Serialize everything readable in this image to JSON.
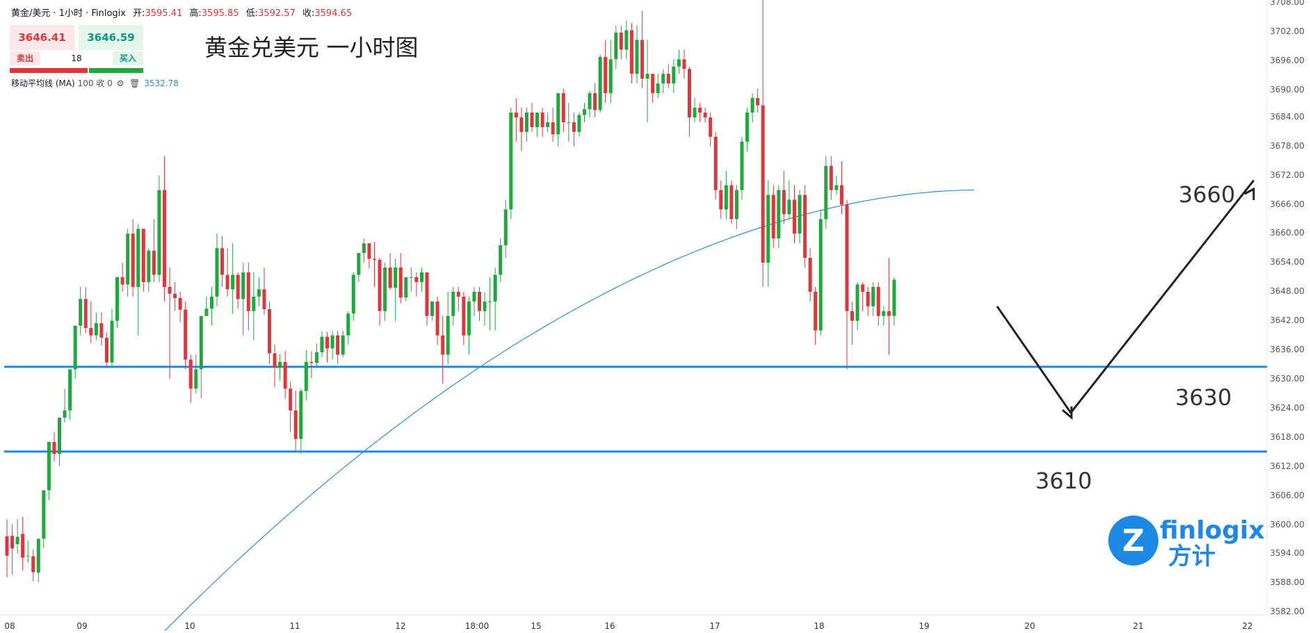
{
  "header": {
    "symbol": "黄金/美元 · 1小时 · Finlogix",
    "open_label": "开:",
    "open": "3595.41",
    "high_label": "高:",
    "high": "3595.85",
    "low_label": "低:",
    "low": "3592.57",
    "close_label": "收:",
    "close": "3594.65"
  },
  "trade_panel": {
    "sell_price": "3646.41",
    "buy_price": "3646.59",
    "sell_label": "卖出",
    "buy_label": "买入",
    "quantity": "18"
  },
  "indicator": {
    "label": "移动平均线 (MA)",
    "params": "100 收 0",
    "value": "3532.78"
  },
  "overlay_title": "黄金兑美元 一小时图",
  "logo": {
    "name": "finlogix",
    "name_cn": "方计",
    "mark": "Z"
  },
  "colors": {
    "up": "#1fa83b",
    "down": "#e0353b",
    "ma": "#2f8ce0",
    "level_line": "#1e88e5",
    "axis_text": "#555555",
    "arrow": "#222222"
  },
  "chart_data": {
    "type": "candlestick",
    "title": "黄金兑美元 一小时图",
    "ylim": [
      3578,
      3708
    ],
    "y_ticks": [
      3708,
      3702,
      3696,
      3690,
      3684,
      3678,
      3672,
      3666,
      3660,
      3654,
      3648,
      3642,
      3636,
      3630,
      3624,
      3618,
      3612,
      3606,
      3600,
      3594,
      3588,
      3582
    ],
    "x_ticks": [
      "08",
      "09",
      "10",
      "11",
      "12",
      "18:00",
      "15",
      "16",
      "17",
      "18",
      "19",
      "20",
      "21",
      "22"
    ],
    "horizontal_levels": [
      3629.5,
      3612.0
    ],
    "level_labels": [
      "3660",
      "3630",
      "3610"
    ],
    "moving_average": {
      "name": "MA 100",
      "start": 3575.0,
      "end": 3666.0
    },
    "projection_path": [
      3642,
      3620,
      3668
    ],
    "candles": [
      {
        "o": 3594.5,
        "h": 3598.0,
        "c": 3590.5,
        "l": 3586.0
      },
      {
        "o": 3594.6,
        "h": 3597.0,
        "c": 3592.0,
        "l": 3586.6
      },
      {
        "o": 3592.9,
        "h": 3598.1,
        "c": 3594.4,
        "l": 3590.9
      },
      {
        "o": 3595.0,
        "h": 3598.5,
        "c": 3590.1,
        "l": 3587.4
      },
      {
        "o": 3590.5,
        "h": 3593.6,
        "c": 3590.5,
        "l": 3589.0
      },
      {
        "o": 3590.4,
        "h": 3591.8,
        "c": 3587.1,
        "l": 3585.2
      },
      {
        "o": 3587.0,
        "h": 3594.0,
        "c": 3594.0,
        "l": 3585.0
      },
      {
        "o": 3594.0,
        "h": 3604.0,
        "c": 3604.0,
        "l": 3592.0
      },
      {
        "o": 3604.0,
        "h": 3614.0,
        "c": 3614.0,
        "l": 3602.0
      },
      {
        "o": 3614.0,
        "h": 3616.0,
        "c": 3611.5,
        "l": 3610.0
      },
      {
        "o": 3611.5,
        "h": 3619.0,
        "c": 3619.0,
        "l": 3609.0
      },
      {
        "o": 3619.0,
        "h": 3625.0,
        "c": 3620.5,
        "l": 3618.0
      },
      {
        "o": 3620.5,
        "h": 3629.0,
        "c": 3629.0,
        "l": 3618.5
      },
      {
        "o": 3629.0,
        "h": 3638.0,
        "c": 3638.0,
        "l": 3627.0
      },
      {
        "o": 3638.0,
        "h": 3646.0,
        "c": 3643.5,
        "l": 3636.0
      },
      {
        "o": 3643.5,
        "h": 3646.0,
        "c": 3637.5,
        "l": 3636.5
      },
      {
        "o": 3637.5,
        "h": 3643.0,
        "c": 3636.0,
        "l": 3634.4
      },
      {
        "o": 3636.0,
        "h": 3640.7,
        "c": 3638.5,
        "l": 3635.0
      },
      {
        "o": 3638.5,
        "h": 3640.8,
        "c": 3635.5,
        "l": 3633.9
      },
      {
        "o": 3635.5,
        "h": 3636.6,
        "c": 3630.4,
        "l": 3629.2
      },
      {
        "o": 3630.4,
        "h": 3641.5,
        "c": 3639.0,
        "l": 3629.2
      },
      {
        "o": 3639.0,
        "h": 3648.0,
        "c": 3648.0,
        "l": 3637.5
      },
      {
        "o": 3648.0,
        "h": 3651.0,
        "c": 3646.5,
        "l": 3645.0
      },
      {
        "o": 3646.5,
        "h": 3658.0,
        "c": 3657.0,
        "l": 3644.0
      },
      {
        "o": 3657.0,
        "h": 3660.0,
        "c": 3646.0,
        "l": 3644.0
      },
      {
        "o": 3646.0,
        "h": 3659.0,
        "c": 3658.0,
        "l": 3636.0
      },
      {
        "o": 3658.0,
        "h": 3658.0,
        "c": 3647.0,
        "l": 3645.0
      },
      {
        "o": 3647.0,
        "h": 3654.0,
        "c": 3653.5,
        "l": 3645.0
      },
      {
        "o": 3653.5,
        "h": 3660.0,
        "c": 3648.5,
        "l": 3647.0
      },
      {
        "o": 3648.5,
        "h": 3669.0,
        "c": 3666.0,
        "l": 3647.0
      },
      {
        "o": 3666.0,
        "h": 3673.0,
        "c": 3646.0,
        "l": 3643.0
      },
      {
        "o": 3646.0,
        "h": 3650.0,
        "c": 3644.6,
        "l": 3627.0
      },
      {
        "o": 3644.6,
        "h": 3647.0,
        "c": 3643.7,
        "l": 3641.0
      },
      {
        "o": 3643.7,
        "h": 3645.0,
        "c": 3641.3,
        "l": 3638.7
      },
      {
        "o": 3641.3,
        "h": 3643.0,
        "c": 3631.0,
        "l": 3629.0
      },
      {
        "o": 3631.0,
        "h": 3632.0,
        "c": 3625.0,
        "l": 3622.0
      },
      {
        "o": 3625.0,
        "h": 3632.0,
        "c": 3629.0,
        "l": 3624.0
      },
      {
        "o": 3629.0,
        "h": 3640.0,
        "c": 3640.0,
        "l": 3623.0
      },
      {
        "o": 3640.0,
        "h": 3644.0,
        "c": 3641.5,
        "l": 3640.0
      },
      {
        "o": 3641.5,
        "h": 3646.0,
        "c": 3644.0,
        "l": 3638.0
      },
      {
        "o": 3644.0,
        "h": 3657.0,
        "c": 3654.0,
        "l": 3642.0
      },
      {
        "o": 3654.0,
        "h": 3656.5,
        "c": 3648.5,
        "l": 3646.0
      },
      {
        "o": 3648.5,
        "h": 3654.0,
        "c": 3645.5,
        "l": 3644.0
      },
      {
        "o": 3645.5,
        "h": 3655.0,
        "c": 3648.5,
        "l": 3640.5
      },
      {
        "o": 3648.5,
        "h": 3649.0,
        "c": 3643.5,
        "l": 3641.5
      },
      {
        "o": 3643.5,
        "h": 3651.0,
        "c": 3649.0,
        "l": 3636.0
      },
      {
        "o": 3649.0,
        "h": 3651.0,
        "c": 3641.0,
        "l": 3637.0
      },
      {
        "o": 3641.0,
        "h": 3649.0,
        "c": 3644.0,
        "l": 3635.0
      },
      {
        "o": 3644.0,
        "h": 3648.0,
        "c": 3645.5,
        "l": 3642.0
      },
      {
        "o": 3645.5,
        "h": 3650.0,
        "c": 3641.4,
        "l": 3640.2
      },
      {
        "o": 3641.4,
        "h": 3643.0,
        "c": 3632.3,
        "l": 3630.1
      },
      {
        "o": 3632.3,
        "h": 3634.1,
        "c": 3629.3,
        "l": 3625.3
      },
      {
        "o": 3629.3,
        "h": 3632.1,
        "c": 3630.5,
        "l": 3626.6
      },
      {
        "o": 3630.5,
        "h": 3632.8,
        "c": 3625.0,
        "l": 3622.9
      },
      {
        "o": 3625.0,
        "h": 3626.5,
        "c": 3620.5,
        "l": 3616.0
      },
      {
        "o": 3620.5,
        "h": 3624.6,
        "c": 3614.6,
        "l": 3612.1
      },
      {
        "o": 3614.6,
        "h": 3625.0,
        "c": 3624.5,
        "l": 3611.5
      },
      {
        "o": 3624.5,
        "h": 3633.0,
        "c": 3630.5,
        "l": 3622.5
      },
      {
        "o": 3630.5,
        "h": 3632.7,
        "c": 3630.3,
        "l": 3627.1
      },
      {
        "o": 3630.3,
        "h": 3634.3,
        "c": 3632.5,
        "l": 3629.6
      },
      {
        "o": 3632.5,
        "h": 3636.8,
        "c": 3635.7,
        "l": 3631.5
      },
      {
        "o": 3635.7,
        "h": 3636.7,
        "c": 3633.3,
        "l": 3630.4
      },
      {
        "o": 3633.3,
        "h": 3637.0,
        "c": 3636.0,
        "l": 3631.0
      },
      {
        "o": 3636.0,
        "h": 3637.0,
        "c": 3632.0,
        "l": 3630.0
      },
      {
        "o": 3632.0,
        "h": 3637.0,
        "c": 3636.0,
        "l": 3631.5
      },
      {
        "o": 3636.0,
        "h": 3641.0,
        "c": 3640.5,
        "l": 3634.0
      },
      {
        "o": 3640.5,
        "h": 3649.0,
        "c": 3648.5,
        "l": 3639.0
      },
      {
        "o": 3648.5,
        "h": 3653.0,
        "c": 3653.0,
        "l": 3647.0
      },
      {
        "o": 3653.0,
        "h": 3656.0,
        "c": 3655.0,
        "l": 3651.0
      },
      {
        "o": 3655.0,
        "h": 3655.0,
        "c": 3651.8,
        "l": 3649.8
      },
      {
        "o": 3651.8,
        "h": 3655.3,
        "c": 3651.6,
        "l": 3646.0
      },
      {
        "o": 3651.6,
        "h": 3652.0,
        "c": 3641.0,
        "l": 3638.0
      },
      {
        "o": 3641.0,
        "h": 3651.0,
        "c": 3650.0,
        "l": 3639.0
      },
      {
        "o": 3650.0,
        "h": 3653.0,
        "c": 3645.8,
        "l": 3645.4
      },
      {
        "o": 3645.8,
        "h": 3651.8,
        "c": 3650.0,
        "l": 3638.9
      },
      {
        "o": 3650.0,
        "h": 3653.0,
        "c": 3643.8,
        "l": 3642.6
      },
      {
        "o": 3643.8,
        "h": 3648.0,
        "c": 3648.0,
        "l": 3643.0
      },
      {
        "o": 3648.0,
        "h": 3650.0,
        "c": 3648.0,
        "l": 3645.0
      },
      {
        "o": 3648.0,
        "h": 3649.0,
        "c": 3647.0,
        "l": 3644.0
      },
      {
        "o": 3647.0,
        "h": 3650.0,
        "c": 3649.0,
        "l": 3645.0
      },
      {
        "o": 3649.0,
        "h": 3649.0,
        "c": 3640.0,
        "l": 3638.0
      },
      {
        "o": 3640.0,
        "h": 3642.0,
        "c": 3643.0,
        "l": 3639.0
      },
      {
        "o": 3643.0,
        "h": 3644.0,
        "c": 3636.0,
        "l": 3634.0
      },
      {
        "o": 3636.0,
        "h": 3640.0,
        "c": 3632.0,
        "l": 3626.0
      },
      {
        "o": 3632.0,
        "h": 3645.0,
        "c": 3640.0,
        "l": 3630.0
      },
      {
        "o": 3640.0,
        "h": 3646.0,
        "c": 3645.0,
        "l": 3638.0
      },
      {
        "o": 3645.0,
        "h": 3646.0,
        "c": 3644.0,
        "l": 3641.0
      },
      {
        "o": 3644.0,
        "h": 3645.0,
        "c": 3636.0,
        "l": 3634.0
      },
      {
        "o": 3636.0,
        "h": 3644.0,
        "c": 3643.0,
        "l": 3632.0
      },
      {
        "o": 3643.0,
        "h": 3646.0,
        "c": 3645.0,
        "l": 3640.0
      },
      {
        "o": 3645.0,
        "h": 3646.0,
        "c": 3641.0,
        "l": 3639.0
      },
      {
        "o": 3641.0,
        "h": 3645.0,
        "c": 3643.0,
        "l": 3638.0
      },
      {
        "o": 3643.0,
        "h": 3648.0,
        "c": 3643.0,
        "l": 3637.0
      },
      {
        "o": 3643.0,
        "h": 3650.0,
        "c": 3648.5,
        "l": 3637.0
      },
      {
        "o": 3648.5,
        "h": 3656.0,
        "c": 3654.6,
        "l": 3647.0
      },
      {
        "o": 3654.6,
        "h": 3664.0,
        "c": 3662.0,
        "l": 3652.0
      },
      {
        "o": 3662.0,
        "h": 3683.0,
        "c": 3682.0,
        "l": 3660.0
      },
      {
        "o": 3682.0,
        "h": 3685.0,
        "c": 3681.0,
        "l": 3676.0
      },
      {
        "o": 3681.0,
        "h": 3683.0,
        "c": 3678.0,
        "l": 3674.0
      },
      {
        "o": 3678.0,
        "h": 3683.0,
        "c": 3682.0,
        "l": 3676.0
      },
      {
        "o": 3682.0,
        "h": 3684.0,
        "c": 3679.0,
        "l": 3678.0
      },
      {
        "o": 3679.0,
        "h": 3682.0,
        "c": 3682.0,
        "l": 3677.0
      },
      {
        "o": 3682.0,
        "h": 3683.0,
        "c": 3679.0,
        "l": 3677.0
      },
      {
        "o": 3679.0,
        "h": 3682.0,
        "c": 3680.0,
        "l": 3678.0
      },
      {
        "o": 3680.0,
        "h": 3683.0,
        "c": 3677.5,
        "l": 3676.0
      },
      {
        "o": 3677.5,
        "h": 3686.0,
        "c": 3686.0,
        "l": 3675.0
      },
      {
        "o": 3686.0,
        "h": 3687.0,
        "c": 3680.0,
        "l": 3678.0
      },
      {
        "o": 3680.0,
        "h": 3684.0,
        "c": 3680.0,
        "l": 3676.0
      },
      {
        "o": 3680.0,
        "h": 3682.0,
        "c": 3678.0,
        "l": 3675.0
      },
      {
        "o": 3678.0,
        "h": 3682.0,
        "c": 3681.5,
        "l": 3677.0
      },
      {
        "o": 3681.5,
        "h": 3684.0,
        "c": 3682.7,
        "l": 3680.0
      },
      {
        "o": 3682.7,
        "h": 3686.5,
        "c": 3686.0,
        "l": 3681.0
      },
      {
        "o": 3686.0,
        "h": 3688.0,
        "c": 3682.5,
        "l": 3681.0
      },
      {
        "o": 3682.5,
        "h": 3694.0,
        "c": 3693.5,
        "l": 3682.0
      },
      {
        "o": 3693.5,
        "h": 3697.0,
        "c": 3686.0,
        "l": 3684.0
      },
      {
        "o": 3686.0,
        "h": 3697.0,
        "c": 3693.0,
        "l": 3684.0
      },
      {
        "o": 3693.0,
        "h": 3700.0,
        "c": 3698.5,
        "l": 3691.0
      },
      {
        "o": 3698.5,
        "h": 3700.0,
        "c": 3695.0,
        "l": 3693.0
      },
      {
        "o": 3695.0,
        "h": 3701.0,
        "c": 3699.0,
        "l": 3693.0
      },
      {
        "o": 3699.0,
        "h": 3700.5,
        "c": 3690.0,
        "l": 3688.0
      },
      {
        "o": 3690.0,
        "h": 3700.0,
        "c": 3697.0,
        "l": 3688.0
      },
      {
        "o": 3697.0,
        "h": 3703.0,
        "c": 3689.0,
        "l": 3687.0
      },
      {
        "o": 3689.0,
        "h": 3697.0,
        "c": 3690.0,
        "l": 3680.0
      },
      {
        "o": 3690.0,
        "h": 3690.0,
        "c": 3686.0,
        "l": 3684.0
      },
      {
        "o": 3686.0,
        "h": 3690.0,
        "c": 3688.0,
        "l": 3685.0
      },
      {
        "o": 3688.0,
        "h": 3691.0,
        "c": 3690.0,
        "l": 3686.0
      },
      {
        "o": 3690.0,
        "h": 3692.0,
        "c": 3688.0,
        "l": 3687.0
      },
      {
        "o": 3688.0,
        "h": 3693.0,
        "c": 3691.5,
        "l": 3686.0
      },
      {
        "o": 3691.5,
        "h": 3695.0,
        "c": 3693.0,
        "l": 3690.0
      },
      {
        "o": 3693.0,
        "h": 3695.0,
        "c": 3691.0,
        "l": 3689.0
      },
      {
        "o": 3691.0,
        "h": 3691.5,
        "c": 3681.0,
        "l": 3677.0
      },
      {
        "o": 3681.0,
        "h": 3685.0,
        "c": 3683.0,
        "l": 3680.0
      },
      {
        "o": 3683.0,
        "h": 3684.0,
        "c": 3682.0,
        "l": 3680.0
      },
      {
        "o": 3682.0,
        "h": 3683.0,
        "c": 3681.0,
        "l": 3680.0
      },
      {
        "o": 3681.0,
        "h": 3682.0,
        "c": 3677.0,
        "l": 3675.0
      },
      {
        "o": 3677.0,
        "h": 3678.0,
        "c": 3666.0,
        "l": 3664.0
      },
      {
        "o": 3666.0,
        "h": 3668.0,
        "c": 3662.0,
        "l": 3660.0
      },
      {
        "o": 3662.0,
        "h": 3670.0,
        "c": 3667.0,
        "l": 3660.0
      },
      {
        "o": 3667.0,
        "h": 3668.0,
        "c": 3660.0,
        "l": 3659.0
      },
      {
        "o": 3660.0,
        "h": 3667.0,
        "c": 3666.0,
        "l": 3658.0
      },
      {
        "o": 3666.0,
        "h": 3677.0,
        "c": 3676.0,
        "l": 3664.0
      },
      {
        "o": 3676.0,
        "h": 3683.0,
        "c": 3682.0,
        "l": 3674.0
      },
      {
        "o": 3682.0,
        "h": 3686.0,
        "c": 3685.0,
        "l": 3680.0
      },
      {
        "o": 3685.0,
        "h": 3687.0,
        "c": 3683.5,
        "l": 3682.0
      },
      {
        "o": 3683.5,
        "h": 3709.0,
        "c": 3651.0,
        "l": 3646.0
      },
      {
        "o": 3651.0,
        "h": 3668.0,
        "c": 3665.0,
        "l": 3646.0
      },
      {
        "o": 3665.0,
        "h": 3667.0,
        "c": 3656.0,
        "l": 3654.0
      },
      {
        "o": 3656.0,
        "h": 3667.0,
        "c": 3666.0,
        "l": 3654.0
      },
      {
        "o": 3666.0,
        "h": 3670.0,
        "c": 3661.0,
        "l": 3659.0
      },
      {
        "o": 3661.0,
        "h": 3668.0,
        "c": 3664.0,
        "l": 3660.0
      },
      {
        "o": 3664.0,
        "h": 3667.0,
        "c": 3657.0,
        "l": 3655.0
      },
      {
        "o": 3657.0,
        "h": 3666.0,
        "c": 3665.0,
        "l": 3655.0
      },
      {
        "o": 3665.0,
        "h": 3667.0,
        "c": 3652.0,
        "l": 3650.0
      },
      {
        "o": 3652.0,
        "h": 3654.0,
        "c": 3645.0,
        "l": 3643.0
      },
      {
        "o": 3645.0,
        "h": 3646.0,
        "c": 3637.0,
        "l": 3634.0
      },
      {
        "o": 3637.0,
        "h": 3662.0,
        "c": 3660.0,
        "l": 3636.0
      },
      {
        "o": 3660.0,
        "h": 3673.0,
        "c": 3671.0,
        "l": 3658.0
      },
      {
        "o": 3671.0,
        "h": 3673.0,
        "c": 3666.0,
        "l": 3664.0
      },
      {
        "o": 3666.0,
        "h": 3669.0,
        "c": 3667.0,
        "l": 3665.0
      },
      {
        "o": 3667.0,
        "h": 3672.0,
        "c": 3663.0,
        "l": 3661.0
      },
      {
        "o": 3663.0,
        "h": 3664.0,
        "c": 3641.0,
        "l": 3629.0
      },
      {
        "o": 3641.0,
        "h": 3643.0,
        "c": 3639.0,
        "l": 3634.0
      },
      {
        "o": 3639.0,
        "h": 3647.0,
        "c": 3646.5,
        "l": 3637.0
      },
      {
        "o": 3646.5,
        "h": 3647.0,
        "c": 3645.0,
        "l": 3641.0
      },
      {
        "o": 3645.0,
        "h": 3646.0,
        "c": 3642.0,
        "l": 3640.0
      },
      {
        "o": 3642.0,
        "h": 3647.0,
        "c": 3646.0,
        "l": 3640.0
      },
      {
        "o": 3646.0,
        "h": 3647.0,
        "c": 3640.0,
        "l": 3638.0
      },
      {
        "o": 3640.0,
        "h": 3642.0,
        "c": 3641.0,
        "l": 3638.0
      },
      {
        "o": 3641.0,
        "h": 3652.0,
        "c": 3640.0,
        "l": 3632.0
      },
      {
        "o": 3640.0,
        "h": 3648.0,
        "c": 3647.5,
        "l": 3638.0
      }
    ]
  }
}
